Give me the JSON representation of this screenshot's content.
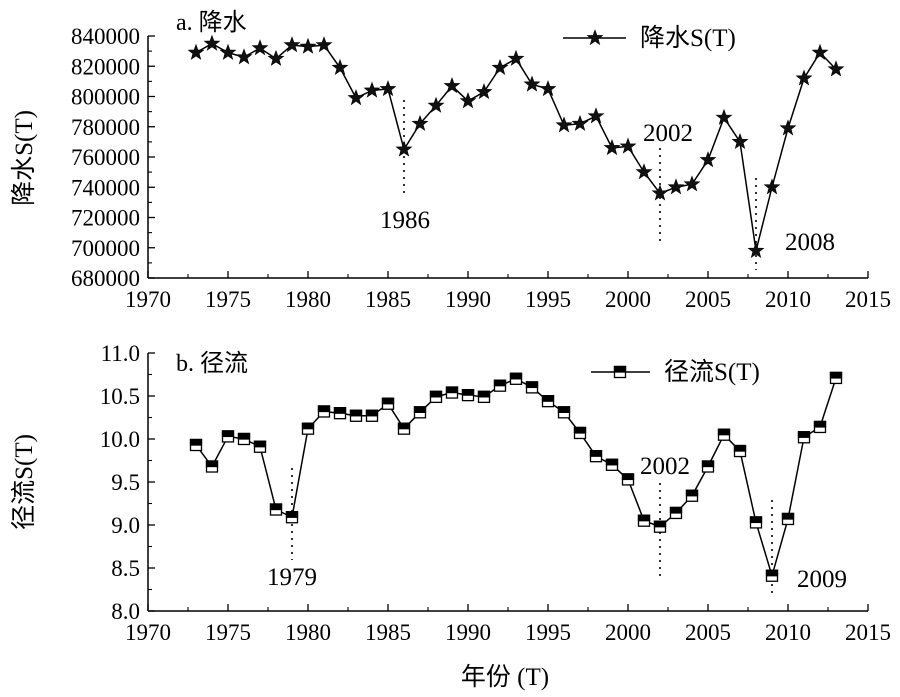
{
  "chart_data": [
    {
      "type": "line",
      "panel_label": "a. 降水",
      "ylabel": "降水S(T)",
      "xlabel": "",
      "xlim": [
        1970,
        2015
      ],
      "ylim": [
        680000,
        840000
      ],
      "xticks": [
        "1970",
        "1975",
        "1980",
        "1985",
        "1990",
        "1995",
        "2000",
        "2005",
        "2010",
        "2015"
      ],
      "yticks": [
        "680000",
        "700000",
        "720000",
        "740000",
        "760000",
        "780000",
        "800000",
        "820000",
        "840000"
      ],
      "legend": {
        "position": "top-right"
      },
      "series": [
        {
          "name": "降水S(T)",
          "marker": "star",
          "x": [
            1973,
            1974,
            1975,
            1976,
            1977,
            1978,
            1979,
            1980,
            1981,
            1982,
            1983,
            1984,
            1985,
            1986,
            1987,
            1988,
            1989,
            1990,
            1991,
            1992,
            1993,
            1994,
            1995,
            1996,
            1997,
            1998,
            1999,
            2000,
            2001,
            2002,
            2003,
            2004,
            2005,
            2006,
            2007,
            2008,
            2009,
            2010,
            2011,
            2012,
            2013
          ],
          "y": [
            829000,
            835000,
            829000,
            826000,
            832000,
            825000,
            834000,
            833000,
            834000,
            819000,
            799000,
            804000,
            805000,
            765000,
            782000,
            794000,
            807000,
            797000,
            803000,
            819000,
            825000,
            808000,
            805000,
            781000,
            782000,
            787000,
            766000,
            767000,
            750000,
            736000,
            740000,
            742000,
            758000,
            786000,
            770000,
            698000,
            740000,
            779000,
            812000,
            829000,
            818000
          ]
        }
      ],
      "annotations": [
        {
          "label": "1986",
          "x": 1986
        },
        {
          "label": "2002",
          "x": 2002
        },
        {
          "label": "2008",
          "x": 2008
        }
      ]
    },
    {
      "type": "line",
      "panel_label": "b. 径流",
      "ylabel": "径流S(T)",
      "xlabel": "年份 (T)",
      "xlim": [
        1970,
        2015
      ],
      "ylim": [
        8.0,
        11.0
      ],
      "xticks": [
        "1970",
        "1975",
        "1980",
        "1985",
        "1990",
        "1995",
        "2000",
        "2005",
        "2010",
        "2015"
      ],
      "yticks": [
        "8.0",
        "8.5",
        "9.0",
        "9.5",
        "10.0",
        "10.5",
        "11.0"
      ],
      "legend": {
        "position": "top-right"
      },
      "series": [
        {
          "name": "径流S(T)",
          "marker": "half-filled-square",
          "x": [
            1973,
            1974,
            1975,
            1976,
            1977,
            1978,
            1979,
            1980,
            1981,
            1982,
            1983,
            1984,
            1985,
            1986,
            1987,
            1988,
            1989,
            1990,
            1991,
            1992,
            1993,
            1994,
            1995,
            1996,
            1997,
            1998,
            1999,
            2000,
            2001,
            2002,
            2003,
            2004,
            2005,
            2006,
            2007,
            2008,
            2009,
            2010,
            2011,
            2012,
            2013
          ],
          "y": [
            9.93,
            9.68,
            10.03,
            10.0,
            9.91,
            9.18,
            9.09,
            10.12,
            10.32,
            10.3,
            10.27,
            10.27,
            10.41,
            10.12,
            10.31,
            10.49,
            10.54,
            10.51,
            10.49,
            10.62,
            10.7,
            10.6,
            10.44,
            10.31,
            10.07,
            9.8,
            9.7,
            9.53,
            9.05,
            8.98,
            9.14,
            9.34,
            9.68,
            10.05,
            9.86,
            9.03,
            8.41,
            9.07,
            10.02,
            10.14,
            10.71
          ]
        }
      ],
      "annotations": [
        {
          "label": "1979",
          "x": 1979
        },
        {
          "label": "2002",
          "x": 2002
        },
        {
          "label": "2009",
          "x": 2009
        }
      ]
    }
  ]
}
